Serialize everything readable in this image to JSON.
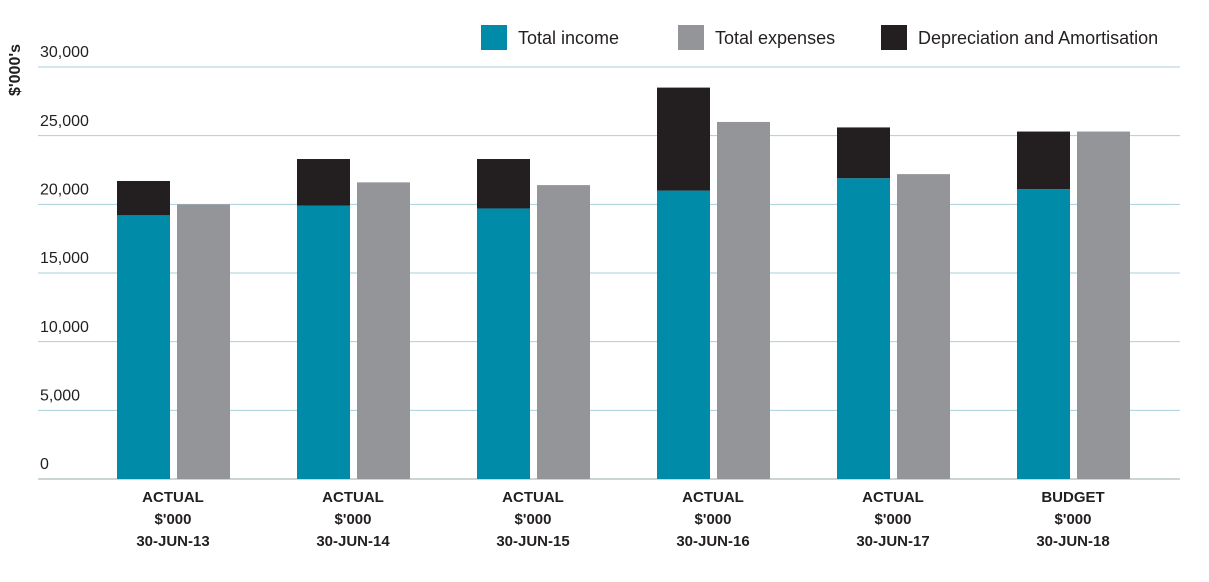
{
  "chart_data": {
    "type": "bar",
    "y_label": "$'000's",
    "categories": [
      [
        "ACTUAL",
        "$'000",
        "30-JUN-13"
      ],
      [
        "ACTUAL",
        "$'000",
        "30-JUN-14"
      ],
      [
        "ACTUAL",
        "$'000",
        "30-JUN-15"
      ],
      [
        "ACTUAL",
        "$'000",
        "30-JUN-16"
      ],
      [
        "ACTUAL",
        "$'000",
        "30-JUN-17"
      ],
      [
        "BUDGET",
        "$'000",
        "30-JUN-18"
      ]
    ],
    "series": [
      {
        "name": "Total income",
        "color": "#008ca8",
        "group": "income",
        "values": [
          19200,
          19900,
          19700,
          21000,
          21900,
          21100
        ]
      },
      {
        "name": "Total expenses",
        "color": "#939598",
        "group": "expenses",
        "values": [
          20000,
          21600,
          21400,
          26000,
          22200,
          25300
        ]
      },
      {
        "name": "Depreciation and Amortisation",
        "color": "#231f20",
        "group": "income",
        "values": [
          2500,
          3400,
          3600,
          7500,
          3700,
          4200
        ]
      }
    ],
    "ylim": [
      0,
      30000
    ],
    "yticks": [
      0,
      {
        "value": 5000,
        "label": "5,000"
      },
      {
        "value": 10000,
        "label": "10,000"
      },
      {
        "value": 15000,
        "label": "15,000"
      },
      {
        "value": 20000,
        "label": "20,000"
      },
      {
        "value": 25000,
        "label": "25,000"
      },
      {
        "value": 30000,
        "label": "30,000"
      }
    ],
    "grid": true,
    "legend": "top-right"
  }
}
